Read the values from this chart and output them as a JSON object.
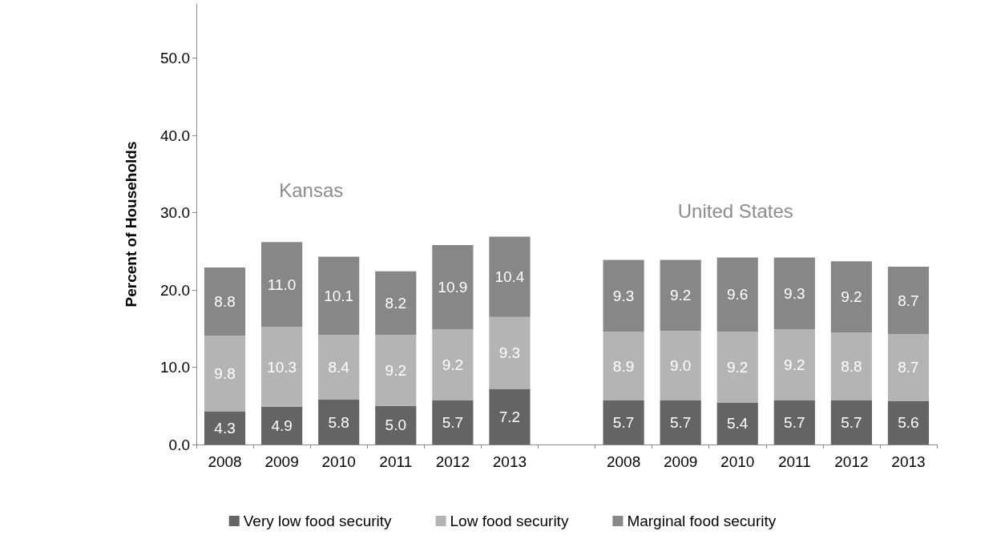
{
  "chart_data": {
    "type": "bar",
    "stacked": true,
    "ylabel": "Percent of Households",
    "categories": [
      "2008",
      "2009",
      "2010",
      "2011",
      "2012",
      "2013",
      null,
      "2008",
      "2009",
      "2010",
      "2011",
      "2012",
      "2013"
    ],
    "series": [
      {
        "name": "Very low food security",
        "color": "#646464",
        "values": [
          4.3,
          4.9,
          5.8,
          5.0,
          5.7,
          7.2,
          null,
          5.7,
          5.7,
          5.4,
          5.7,
          5.7,
          5.6
        ],
        "value_labels": [
          "4.3",
          "4.9",
          "5.8",
          "5.0",
          "5.7",
          "7.2",
          null,
          "5.7",
          "5.7",
          "5.4",
          "5.7",
          "5.7",
          "5.6"
        ]
      },
      {
        "name": "Low food security",
        "color": "#b4b4b4",
        "values": [
          9.8,
          10.3,
          8.4,
          9.2,
          9.2,
          9.3,
          null,
          8.9,
          9.0,
          9.2,
          9.2,
          8.8,
          8.7
        ],
        "value_labels": [
          "9.8",
          "10.3",
          "8.4",
          "9.2",
          "9.2",
          "9.3",
          null,
          "8.9",
          "9.0",
          "9.2",
          "9.2",
          "8.8",
          "8.7"
        ]
      },
      {
        "name": "Marginal food security",
        "color": "#878787",
        "values": [
          8.8,
          11.0,
          10.1,
          8.2,
          10.9,
          10.4,
          null,
          9.3,
          9.2,
          9.6,
          9.3,
          9.2,
          8.7
        ],
        "value_labels": [
          "8.8",
          "11.0",
          "10.1",
          "8.2",
          "10.9",
          "10.4",
          null,
          "9.3",
          "9.2",
          "9.6",
          "9.3",
          "9.2",
          "8.7"
        ]
      }
    ],
    "annotations": [
      "Kansas",
      "United States"
    ],
    "ylim": [
      0,
      57
    ],
    "yticks": [
      {
        "value": 0,
        "label": "0.0"
      },
      {
        "value": 10,
        "label": "10.0"
      },
      {
        "value": 20,
        "label": "20.0"
      },
      {
        "value": 30,
        "label": "30.0"
      },
      {
        "value": 40,
        "label": "40.0"
      },
      {
        "value": 50,
        "label": "50.0"
      }
    ],
    "grid": false,
    "legend": "bottom"
  }
}
